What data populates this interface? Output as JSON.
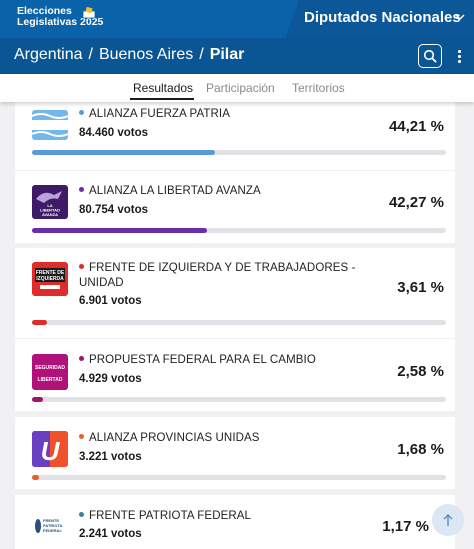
{
  "header": {
    "brand_line1": "Elecciones",
    "brand_line2": "Legislativas 2025",
    "category": "Diputados Nacionales"
  },
  "breadcrumb": {
    "country": "Argentina",
    "province": "Buenos Aires",
    "municipality": "Pilar",
    "separator": "/"
  },
  "tabs": [
    {
      "label": "Resultados",
      "active": true
    },
    {
      "label": "Participación",
      "active": false
    },
    {
      "label": "Territorios",
      "active": false
    }
  ],
  "results": [
    {
      "party": "ALIANZA FUERZA PATRIA",
      "votes": "84.460 votos",
      "percent": "44,21 %",
      "share": 44.21,
      "color": "#5a9bd5"
    },
    {
      "party": "ALIANZA LA LIBERTAD AVANZA",
      "votes": "80.754 votos",
      "percent": "42,27 %",
      "share": 42.27,
      "color": "#6a2fa6"
    },
    {
      "party": "FRENTE DE IZQUIERDA Y DE TRABAJADORES - UNIDAD",
      "votes": "6.901 votos",
      "percent": "3,61 %",
      "share": 3.61,
      "color": "#e02b2b"
    },
    {
      "party": "PROPUESTA FEDERAL PARA EL CAMBIO",
      "votes": "4.929 votos",
      "percent": "2,58 %",
      "share": 2.58,
      "color": "#a0146e"
    },
    {
      "party": "ALIANZA PROVINCIAS UNIDAS",
      "votes": "3.221 votos",
      "percent": "1,68 %",
      "share": 1.68,
      "color": "#e8602c"
    },
    {
      "party": "FRENTE PATRIOTA FEDERAL",
      "votes": "2.241 votos",
      "percent": "1,17 %",
      "share": 1.17,
      "color": "#3a7f9e"
    }
  ],
  "logos": {
    "libertad_text1": "LA",
    "libertad_text2": "LIBERTAD",
    "libertad_text3": "AVANZA",
    "fit_text1": "FRENTE DE",
    "fit_text2": "IZQUIERDA",
    "seguridad_text1": "SEGURIDAD",
    "seguridad_text2": "LIBERTAD",
    "pu_letter": "U",
    "fpf_text1": "FRENTE",
    "fpf_text2": "PATRIOTA",
    "fpf_text3": "FEDERAL"
  },
  "icons": {
    "search": "search-icon",
    "menu": "kebab-menu-icon",
    "chevron": "chevron-down-icon",
    "scroll_top": "arrow-up-icon",
    "ballot": "ballot-box-icon"
  }
}
